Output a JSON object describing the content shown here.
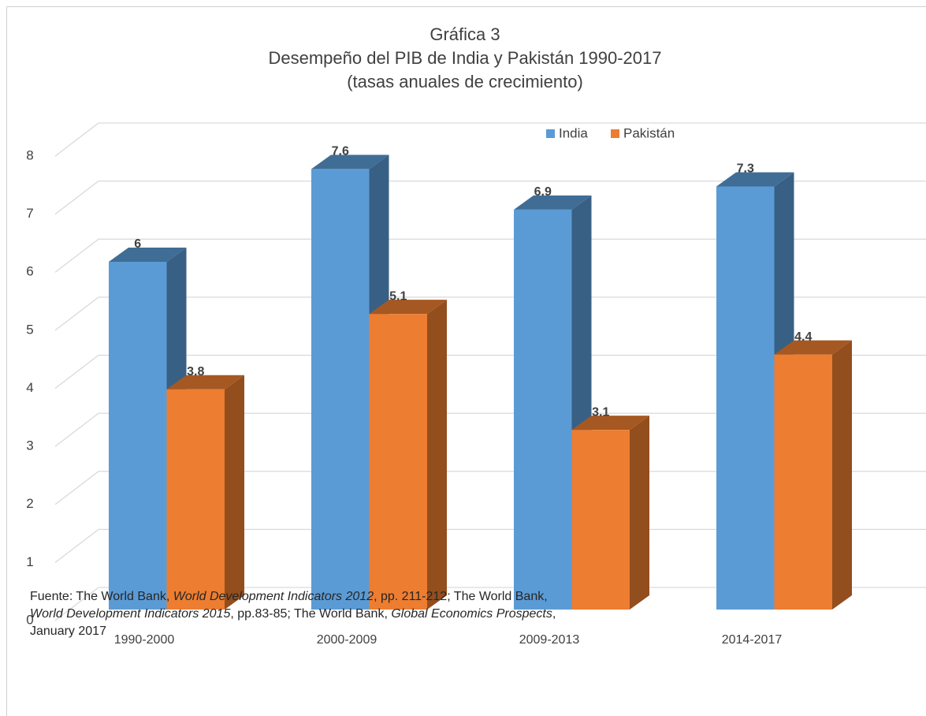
{
  "chart_data": {
    "type": "bar3d",
    "title": [
      "Gráfica 3",
      "Desempeño del PIB de India y Pakistán 1990-2017",
      "(tasas anuales de crecimiento)"
    ],
    "categories": [
      "1990-2000",
      "2000-2009",
      "2009-2013",
      "2014-2017"
    ],
    "series": [
      {
        "name": "India",
        "color": "#5b9bd5",
        "values": [
          6,
          7.6,
          6.9,
          7.3
        ]
      },
      {
        "name": "Pakistán",
        "color": "#ed7d31",
        "values": [
          3.8,
          5.1,
          3.1,
          4.4
        ]
      }
    ],
    "ylim": [
      0,
      8
    ],
    "yticks": [
      0,
      1,
      2,
      3,
      4,
      5,
      6,
      7,
      8
    ],
    "grid": true,
    "legend": "top-right",
    "source": [
      [
        "Fuente: The World Bank, ",
        {
          "italic": "World Development Indicators 2012"
        },
        ", pp. 211-212; The World Bank,"
      ],
      [
        {
          "italic": "World Development Indicators 2015"
        },
        ", pp.83-85; The World Bank, ",
        {
          "italic": "Global Economics Prospects"
        },
        ","
      ],
      [
        "January 2017"
      ]
    ]
  }
}
